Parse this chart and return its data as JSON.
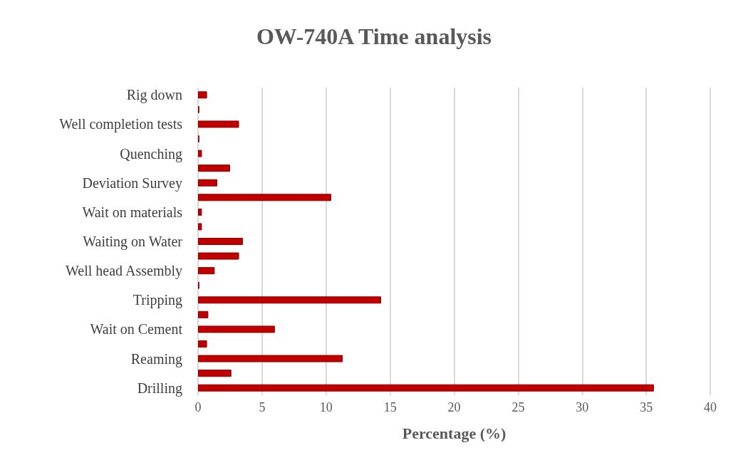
{
  "chart_data": {
    "type": "bar",
    "orientation": "horizontal",
    "title": "OW-740A Time analysis",
    "xlabel": "Percentage (%)",
    "categories": [
      "Rig down",
      null,
      "Well completion tests",
      null,
      "Quenching",
      null,
      "Deviation Survey",
      null,
      "Wait on materials",
      null,
      "Waiting on Water",
      null,
      "Well head Assembly",
      null,
      "Tripping",
      null,
      "Wait on Cement",
      null,
      "Reaming",
      null,
      "Drilling"
    ],
    "values": [
      0.7,
      0.1,
      3.2,
      0.1,
      0.3,
      2.5,
      1.5,
      10.4,
      0.3,
      0.3,
      3.5,
      3.2,
      1.3,
      0.1,
      14.3,
      0.8,
      6.0,
      0.7,
      11.3,
      2.6,
      35.6
    ],
    "color": "#c00000",
    "xlim": [
      0,
      40
    ],
    "xticks": [
      0,
      5,
      10,
      15,
      20,
      25,
      30,
      35,
      40
    ],
    "grid": "x"
  }
}
